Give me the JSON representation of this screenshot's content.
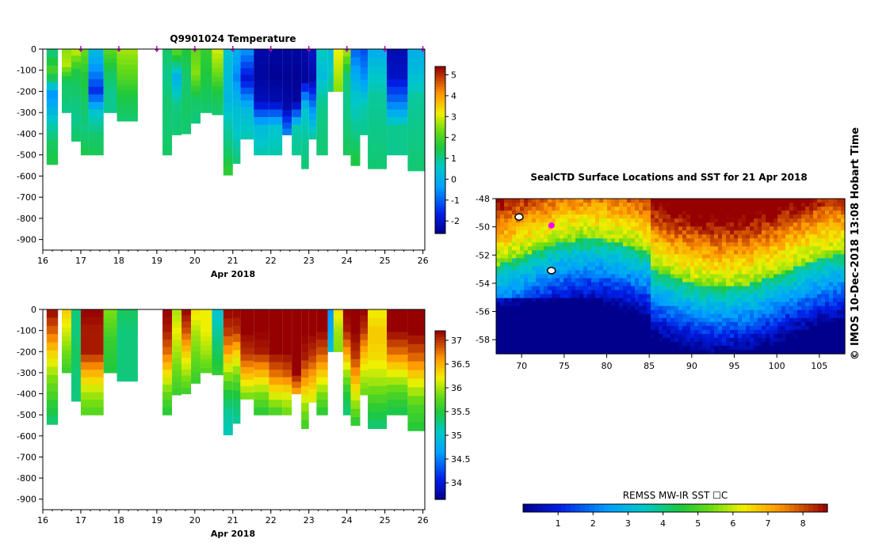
{
  "chart_data": [
    {
      "type": "heatmap",
      "title": "Q9901024  Temperature",
      "xlabel": "Apr 2018",
      "x_ticks": [
        "16",
        "17",
        "18",
        "19",
        "20",
        "21",
        "22",
        "23",
        "24",
        "25",
        "26"
      ],
      "xlim": [
        16,
        26.05
      ],
      "y_ticks": [
        "0",
        "-100",
        "-200",
        "-300",
        "-400",
        "-500",
        "-600",
        "-700",
        "-800",
        "-900"
      ],
      "ylim": [
        -950,
        0
      ],
      "colorbar": {
        "min": -2.6,
        "max": 5.4,
        "ticks": [
          "-2",
          "-1",
          "0",
          "1",
          "2",
          "3",
          "4",
          "5"
        ]
      },
      "profile_markers": [
        17,
        18,
        19,
        20,
        21,
        22,
        23,
        24,
        25,
        26
      ],
      "profiles": [
        {
          "t0": 16.1,
          "t1": 16.4,
          "depth": 545,
          "values": [
            1.0,
            2.0,
            -0.5,
            0.5,
            1.3,
            1.5
          ]
        },
        {
          "t0": 16.5,
          "t1": 16.75,
          "depth": 300,
          "values": [
            2.5,
            2.8,
            1.3,
            1.2,
            1.0
          ]
        },
        {
          "t0": 16.75,
          "t1": 17.0,
          "depth": 435,
          "values": [
            3.0,
            1.5,
            1.2,
            1.0,
            1.3
          ]
        },
        {
          "t0": 17.0,
          "t1": 17.2,
          "depth": 500,
          "values": [
            2.3,
            1.6,
            1.3,
            1.1,
            1.5
          ]
        },
        {
          "t0": 17.2,
          "t1": 17.6,
          "depth": 500,
          "values": [
            0.3,
            -0.5,
            -1.5,
            0.5,
            1.2,
            1.4
          ]
        },
        {
          "t0": 17.6,
          "t1": 17.95,
          "depth": 300,
          "values": [
            2.2,
            1.4,
            1.0,
            1.0
          ]
        },
        {
          "t0": 17.95,
          "t1": 18.5,
          "depth": 340,
          "values": [
            2.7,
            2.2,
            1.5,
            1.2
          ]
        },
        {
          "t0": 19.15,
          "t1": 19.4,
          "depth": 500,
          "values": [
            1.3,
            1.0,
            1.2,
            1.2,
            1.3
          ]
        },
        {
          "t0": 19.4,
          "t1": 19.65,
          "depth": 405,
          "values": [
            2.3,
            0.0,
            1.1,
            1.2
          ]
        },
        {
          "t0": 19.65,
          "t1": 19.9,
          "depth": 400,
          "values": [
            1.6,
            1.2,
            1.3,
            1.2
          ]
        },
        {
          "t0": 19.9,
          "t1": 20.15,
          "depth": 350,
          "values": [
            2.2,
            2.5,
            1.3,
            1.1
          ]
        },
        {
          "t0": 20.15,
          "t1": 20.45,
          "depth": 300,
          "values": [
            1.8,
            1.5,
            1.2
          ]
        },
        {
          "t0": 20.45,
          "t1": 20.75,
          "depth": 310,
          "values": [
            3.0,
            2.4,
            1.5,
            1.2
          ]
        },
        {
          "t0": 20.75,
          "t1": 21.0,
          "depth": 595,
          "values": [
            0.5,
            0.3,
            0.2,
            0.8,
            1.2,
            1.8
          ]
        },
        {
          "t0": 21.0,
          "t1": 21.2,
          "depth": 540,
          "values": [
            0.0,
            -0.6,
            0.3,
            0.6,
            1.2
          ]
        },
        {
          "t0": 21.2,
          "t1": 21.55,
          "depth": 425,
          "values": [
            -0.4,
            -1.9,
            0.2,
            0.8
          ]
        },
        {
          "t0": 21.55,
          "t1": 21.95,
          "depth": 500,
          "values": [
            -2.3,
            -2.4,
            -2.1,
            0.3,
            0.8
          ]
        },
        {
          "t0": 21.95,
          "t1": 22.3,
          "depth": 500,
          "values": [
            -2.4,
            -2.5,
            -2.2,
            0.5,
            0.8
          ]
        },
        {
          "t0": 22.3,
          "t1": 22.55,
          "depth": 405,
          "values": [
            -2.4,
            -2.5,
            -2.3,
            -0.5
          ]
        },
        {
          "t0": 22.55,
          "t1": 22.8,
          "depth": 500,
          "values": [
            -2.4,
            -2.5,
            -2.4,
            0.8,
            1.0
          ]
        },
        {
          "t0": 22.8,
          "t1": 23.0,
          "depth": 565,
          "values": [
            -2.3,
            -2.4,
            0.5,
            0.9,
            1.2
          ]
        },
        {
          "t0": 23.0,
          "t1": 23.2,
          "depth": 425,
          "values": [
            -2.0,
            -2.3,
            -0.5,
            1.0
          ]
        },
        {
          "t0": 23.2,
          "t1": 23.5,
          "depth": 500,
          "values": [
            0.7,
            0.3,
            1.0,
            1.1,
            1.2
          ]
        },
        {
          "t0": 23.5,
          "t1": 23.65,
          "depth": 200,
          "values": [
            0.2,
            1.0
          ]
        },
        {
          "t0": 23.65,
          "t1": 23.9,
          "depth": 200,
          "values": [
            3.2,
            2.5
          ]
        },
        {
          "t0": 23.9,
          "t1": 24.1,
          "depth": 500,
          "values": [
            2.8,
            1.2,
            1.0,
            1.2,
            1.4
          ]
        },
        {
          "t0": 24.1,
          "t1": 24.35,
          "depth": 550,
          "values": [
            -1.0,
            -0.2,
            0.5,
            0.8,
            1.2,
            1.6
          ]
        },
        {
          "t0": 24.35,
          "t1": 24.55,
          "depth": 405,
          "values": [
            -1.2,
            -0.5,
            0.8,
            1.0
          ]
        },
        {
          "t0": 24.55,
          "t1": 25.05,
          "depth": 565,
          "values": [
            -0.1,
            0.5,
            0.9,
            1.0,
            1.1,
            1.2
          ]
        },
        {
          "t0": 25.05,
          "t1": 25.6,
          "depth": 500,
          "values": [
            -2.2,
            -2.0,
            -0.8,
            1.0,
            1.0
          ]
        },
        {
          "t0": 25.6,
          "t1": 26.05,
          "depth": 575,
          "values": [
            0.0,
            0.3,
            0.9,
            1.0,
            1.1,
            1.2
          ]
        }
      ]
    },
    {
      "type": "heatmap",
      "title": "",
      "xlabel": "Apr 2018",
      "x_ticks": [
        "16",
        "17",
        "18",
        "19",
        "20",
        "21",
        "22",
        "23",
        "24",
        "25",
        "26"
      ],
      "xlim": [
        16,
        26.05
      ],
      "y_ticks": [
        "0",
        "-100",
        "-200",
        "-300",
        "-400",
        "-500",
        "-600",
        "-700",
        "-800",
        "-900"
      ],
      "ylim": [
        -950,
        0
      ],
      "colorbar": {
        "min": 33.65,
        "max": 37.2,
        "ticks": [
          "34",
          "34.5",
          "35",
          "35.5",
          "36",
          "36.5",
          "37"
        ]
      },
      "profiles": [
        {
          "t0": 16.1,
          "t1": 16.4,
          "depth": 545,
          "values": [
            37.2,
            36.8,
            36.3,
            35.9,
            35.6,
            35.3
          ]
        },
        {
          "t0": 16.5,
          "t1": 16.75,
          "depth": 300,
          "values": [
            36.4,
            36.0,
            35.6
          ]
        },
        {
          "t0": 16.75,
          "t1": 17.0,
          "depth": 435,
          "values": [
            35.3,
            35.3,
            35.4,
            35.3,
            35.3
          ]
        },
        {
          "t0": 17.0,
          "t1": 17.6,
          "depth": 500,
          "values": [
            37.2,
            37.1,
            37.1,
            36.5,
            36.0,
            35.7
          ]
        },
        {
          "t0": 17.6,
          "t1": 17.95,
          "depth": 300,
          "values": [
            35.9,
            35.6,
            35.5
          ]
        },
        {
          "t0": 17.95,
          "t1": 18.5,
          "depth": 340,
          "values": [
            35.4,
            35.3,
            35.3,
            35.3
          ]
        },
        {
          "t0": 19.15,
          "t1": 19.4,
          "depth": 500,
          "values": [
            37.2,
            37.1,
            36.8,
            36.3,
            35.8,
            35.5
          ]
        },
        {
          "t0": 19.4,
          "t1": 19.65,
          "depth": 405,
          "values": [
            36.0,
            36.2,
            36.0,
            35.8,
            35.6
          ]
        },
        {
          "t0": 19.65,
          "t1": 19.9,
          "depth": 400,
          "values": [
            37.2,
            36.9,
            36.4,
            36.0,
            35.6
          ]
        },
        {
          "t0": 19.9,
          "t1": 20.15,
          "depth": 350,
          "values": [
            36.3,
            36.0,
            35.8,
            35.6
          ]
        },
        {
          "t0": 20.15,
          "t1": 20.45,
          "depth": 300,
          "values": [
            36.2,
            36.2,
            36.0,
            35.7
          ]
        },
        {
          "t0": 20.45,
          "t1": 20.75,
          "depth": 310,
          "values": [
            35.0,
            35.2,
            35.4,
            35.6
          ]
        },
        {
          "t0": 20.75,
          "t1": 21.0,
          "depth": 595,
          "values": [
            37.2,
            37.0,
            36.6,
            36.0,
            35.5,
            35.2,
            35.1
          ]
        },
        {
          "t0": 21.0,
          "t1": 21.2,
          "depth": 540,
          "values": [
            37.2,
            37.0,
            36.3,
            35.8,
            35.4,
            35.2
          ]
        },
        {
          "t0": 21.2,
          "t1": 21.55,
          "depth": 425,
          "values": [
            37.2,
            37.2,
            37.0,
            36.4,
            35.8
          ]
        },
        {
          "t0": 21.55,
          "t1": 21.95,
          "depth": 500,
          "values": [
            37.2,
            37.2,
            37.1,
            36.5,
            35.9,
            35.5
          ]
        },
        {
          "t0": 21.95,
          "t1": 22.3,
          "depth": 500,
          "values": [
            37.2,
            37.2,
            37.2,
            36.8,
            36.2,
            35.6
          ]
        },
        {
          "t0": 22.3,
          "t1": 22.55,
          "depth": 500,
          "values": [
            37.2,
            37.2,
            37.2,
            36.9,
            36.2,
            35.8
          ]
        },
        {
          "t0": 22.55,
          "t1": 22.8,
          "depth": 400,
          "values": [
            37.2,
            37.2,
            37.2,
            37.2,
            36.5
          ]
        },
        {
          "t0": 22.8,
          "t1": 23.0,
          "depth": 565,
          "values": [
            37.2,
            37.2,
            37.1,
            36.6,
            36.0,
            35.6
          ]
        },
        {
          "t0": 23.0,
          "t1": 23.2,
          "depth": 440,
          "values": [
            37.2,
            37.2,
            37.0,
            36.5,
            36.1
          ]
        },
        {
          "t0": 23.2,
          "t1": 23.5,
          "depth": 500,
          "values": [
            37.2,
            37.2,
            36.9,
            36.4,
            35.9,
            35.5
          ]
        },
        {
          "t0": 23.5,
          "t1": 23.65,
          "depth": 200,
          "values": [
            34.6,
            34.7,
            35.0
          ]
        },
        {
          "t0": 23.65,
          "t1": 23.9,
          "depth": 200,
          "values": [
            36.3,
            36.0,
            35.9
          ]
        },
        {
          "t0": 23.9,
          "t1": 24.1,
          "depth": 500,
          "values": [
            37.2,
            37.1,
            36.6,
            36.0,
            35.5,
            35.3
          ]
        },
        {
          "t0": 24.1,
          "t1": 24.35,
          "depth": 550,
          "values": [
            37.2,
            37.2,
            37.0,
            36.5,
            36.0,
            35.5
          ]
        },
        {
          "t0": 24.35,
          "t1": 24.55,
          "depth": 405,
          "values": [
            37.2,
            37.0,
            36.5,
            36.1,
            35.8
          ]
        },
        {
          "t0": 24.55,
          "t1": 25.05,
          "depth": 565,
          "values": [
            36.2,
            36.4,
            36.3,
            36.0,
            35.6,
            35.3
          ]
        },
        {
          "t0": 25.05,
          "t1": 25.6,
          "depth": 500,
          "values": [
            37.2,
            37.2,
            36.8,
            36.2,
            35.7,
            35.4
          ]
        },
        {
          "t0": 25.6,
          "t1": 26.05,
          "depth": 575,
          "values": [
            37.2,
            37.2,
            36.8,
            36.2,
            35.7,
            35.5
          ]
        }
      ]
    },
    {
      "type": "heatmap",
      "title": "SealCTD Surface Locations and SST for 21 Apr 2018",
      "xlabel": "",
      "ylabel": "",
      "x_ticks": [
        "70",
        "75",
        "80",
        "85",
        "90",
        "95",
        "100",
        "105"
      ],
      "xlim": [
        67,
        108
      ],
      "y_ticks": [
        "-48",
        "-50",
        "-52",
        "-54",
        "-56",
        "-58"
      ],
      "ylim": [
        -59,
        -48
      ],
      "colorbar": {
        "label": "REMSS MW-IR SST ☐C",
        "min": 0,
        "max": 8.7,
        "ticks": [
          "1",
          "2",
          "3",
          "4",
          "5",
          "6",
          "7",
          "8"
        ]
      },
      "surface_location": {
        "lon": 73.5,
        "lat": -49.9
      },
      "island_markers": [
        {
          "lon": 69.7,
          "lat": -49.3
        },
        {
          "lon": 73.5,
          "lat": -53.1
        }
      ],
      "sst_description": "Warm (6-8.5 C) north of ~-52, cold (1-3 C) south of ~-54"
    }
  ],
  "sidebar_text": "IMOS 10-Dec-2018 13:08 Hobart Time",
  "copyright_symbol": "©"
}
